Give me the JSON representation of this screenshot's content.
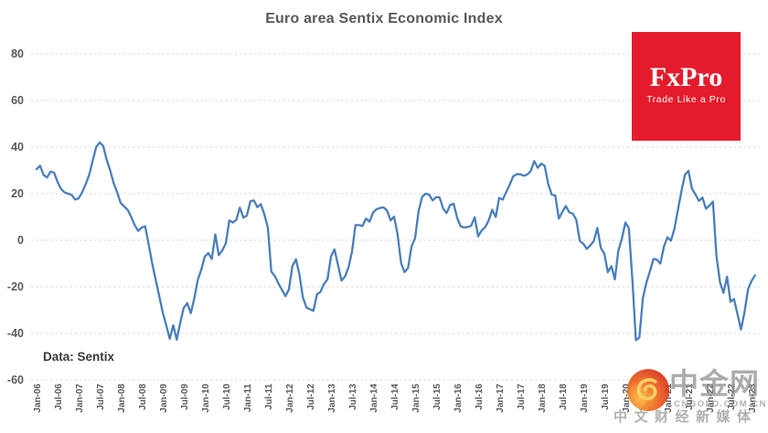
{
  "title": "Euro area Sentix Economic Index",
  "source_note": "Data: Sentix",
  "logo": {
    "brand": "FxPro",
    "tagline": "Trade Like a Pro",
    "bg_color": "#e41b2c"
  },
  "watermark": {
    "site_name": "中金网",
    "site_url": ".CNGOLD.COM.CN",
    "slogan": "中文财经新媒体"
  },
  "chart_data": {
    "type": "line",
    "title": "Euro area Sentix Economic Index",
    "xlabel": "",
    "ylabel": "",
    "x_frequency": "monthly",
    "x_start": "Jan-2006",
    "x_end": "Feb-2023",
    "grid": true,
    "legend": false,
    "line_color": "#4a7ebb",
    "grid_color": "#d8d8d8",
    "label_color": "#595959",
    "ylim": [
      -60,
      80
    ],
    "y_ticks": [
      80,
      60,
      40,
      20,
      0,
      -20,
      -40,
      -60
    ],
    "x_tick_labels": [
      "Jan-06",
      "Jul-06",
      "Jan-07",
      "Jul-07",
      "Jan-08",
      "Jul-08",
      "Jan-09",
      "Jul-09",
      "Jan-10",
      "Jul-10",
      "Jan-11",
      "Jul-11",
      "Jan-12",
      "Jul-12",
      "Jan-13",
      "Jul-13",
      "Jan-14",
      "Jul-14",
      "Jan-15",
      "Jul-15",
      "Jan-16",
      "Jul-16",
      "Jan-17",
      "Jul-17",
      "Jan-18",
      "Jul-18",
      "Jan-19",
      "Jul-19",
      "Jan-20",
      "Jul-20",
      "Jan-21",
      "Jul-21",
      "Jan-22",
      "Jul-22",
      "Jan-23"
    ],
    "values": [
      30.5,
      32,
      28,
      27,
      29.5,
      29,
      25,
      22,
      20.5,
      20,
      19.5,
      17.5,
      18,
      20.5,
      24,
      28,
      34,
      40,
      42,
      40.5,
      34.5,
      30,
      24.5,
      20.5,
      16,
      14.5,
      13,
      10,
      6.5,
      4,
      5.5,
      6,
      -2,
      -10,
      -17,
      -24,
      -31,
      -36.5,
      -42.3,
      -36.5,
      -42.7,
      -35.3,
      -29,
      -27,
      -31.3,
      -25,
      -17,
      -12.6,
      -7,
      -5.5,
      -8,
      2.5,
      -6.4,
      -4.3,
      -1.3,
      8.5,
      7.6,
      8.8,
      14,
      9.7,
      10.6,
      16.7,
      17.1,
      14.2,
      15.5,
      11,
      5.3,
      -13.5,
      -15.4,
      -18.5,
      -21.2,
      -24,
      -21.1,
      -11.1,
      -8.2,
      -14.7,
      -24.5,
      -28.9,
      -29.6,
      -30.3,
      -23.2,
      -22.2,
      -18.8,
      -16.8,
      -7,
      -3.9,
      -10.6,
      -17.3,
      -15.6,
      -11.6,
      -4.9,
      6.5,
      6.5,
      6.1,
      9.3,
      8,
      11.9,
      13.3,
      13.9,
      14.1,
      12.8,
      8.5,
      10.1,
      2.7,
      -9.8,
      -13.7,
      -11.9,
      -2.5,
      0.9,
      12.4,
      18.6,
      20,
      19.6,
      17.1,
      18.5,
      18.4,
      13.6,
      11.7,
      15.1,
      15.7,
      9.6,
      6,
      5.5,
      5.7,
      6.2,
      9.9,
      1.7,
      4.2,
      5.6,
      8.5,
      13.1,
      10,
      18.2,
      17.4,
      20.7,
      23.9,
      27.4,
      28.4,
      28.3,
      27.7,
      28.2,
      29.7,
      34,
      31.1,
      32.9,
      31.9,
      24,
      19.6,
      19.2,
      9.3,
      12.1,
      14.7,
      12,
      11.4,
      8.8,
      -0.3,
      -1.5,
      -3.7,
      -2.2,
      -0.3,
      5.3,
      -3.3,
      -5.8,
      -13.7,
      -11.1,
      -16.8,
      -4.5,
      0.7,
      7.6,
      5.2,
      -17.1,
      -42.9,
      -41.8,
      -24.8,
      -18.2,
      -13.4,
      -8,
      -8.3,
      -10,
      -2.7,
      1.3,
      -0.2,
      5,
      13.1,
      21,
      28.1,
      29.8,
      22.2,
      19.6,
      16.9,
      18.3,
      13.5,
      14.9,
      16.6,
      -7,
      -18,
      -22.6,
      -15.7,
      -26.4,
      -25.2,
      -31.8,
      -38.3,
      -30.9,
      -21,
      -17.5,
      -15
    ]
  }
}
